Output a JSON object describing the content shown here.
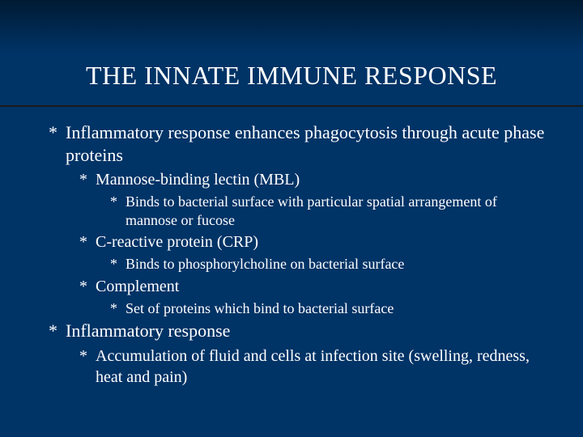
{
  "slide": {
    "title": "THE INNATE IMMUNE RESPONSE",
    "bullet_marker": "*",
    "background_gradient_top": "#001a33",
    "background_color": "#003366",
    "text_color": "#ffffff",
    "divider_color": "#1a1a1a",
    "title_fontsize": 32,
    "l1_fontsize": 22,
    "l2_fontsize": 20,
    "l3_fontsize": 18,
    "font_family": "Times New Roman",
    "items": [
      {
        "level": 1,
        "text": "Inflammatory response enhances phagocytosis through acute phase proteins"
      },
      {
        "level": 2,
        "text": "Mannose-binding lectin (MBL)"
      },
      {
        "level": 3,
        "text": "Binds to bacterial surface with particular spatial arrangement of mannose or fucose"
      },
      {
        "level": 2,
        "text": "C-reactive protein (CRP)"
      },
      {
        "level": 3,
        "text": "Binds to phosphorylcholine on bacterial surface"
      },
      {
        "level": 2,
        "text": "Complement"
      },
      {
        "level": 3,
        "text": "Set of proteins which bind to bacterial surface"
      },
      {
        "level": 1,
        "text": "Inflammatory response"
      },
      {
        "level": 2,
        "text": "Accumulation of fluid and cells at infection site (swelling, redness, heat and pain)"
      }
    ]
  }
}
